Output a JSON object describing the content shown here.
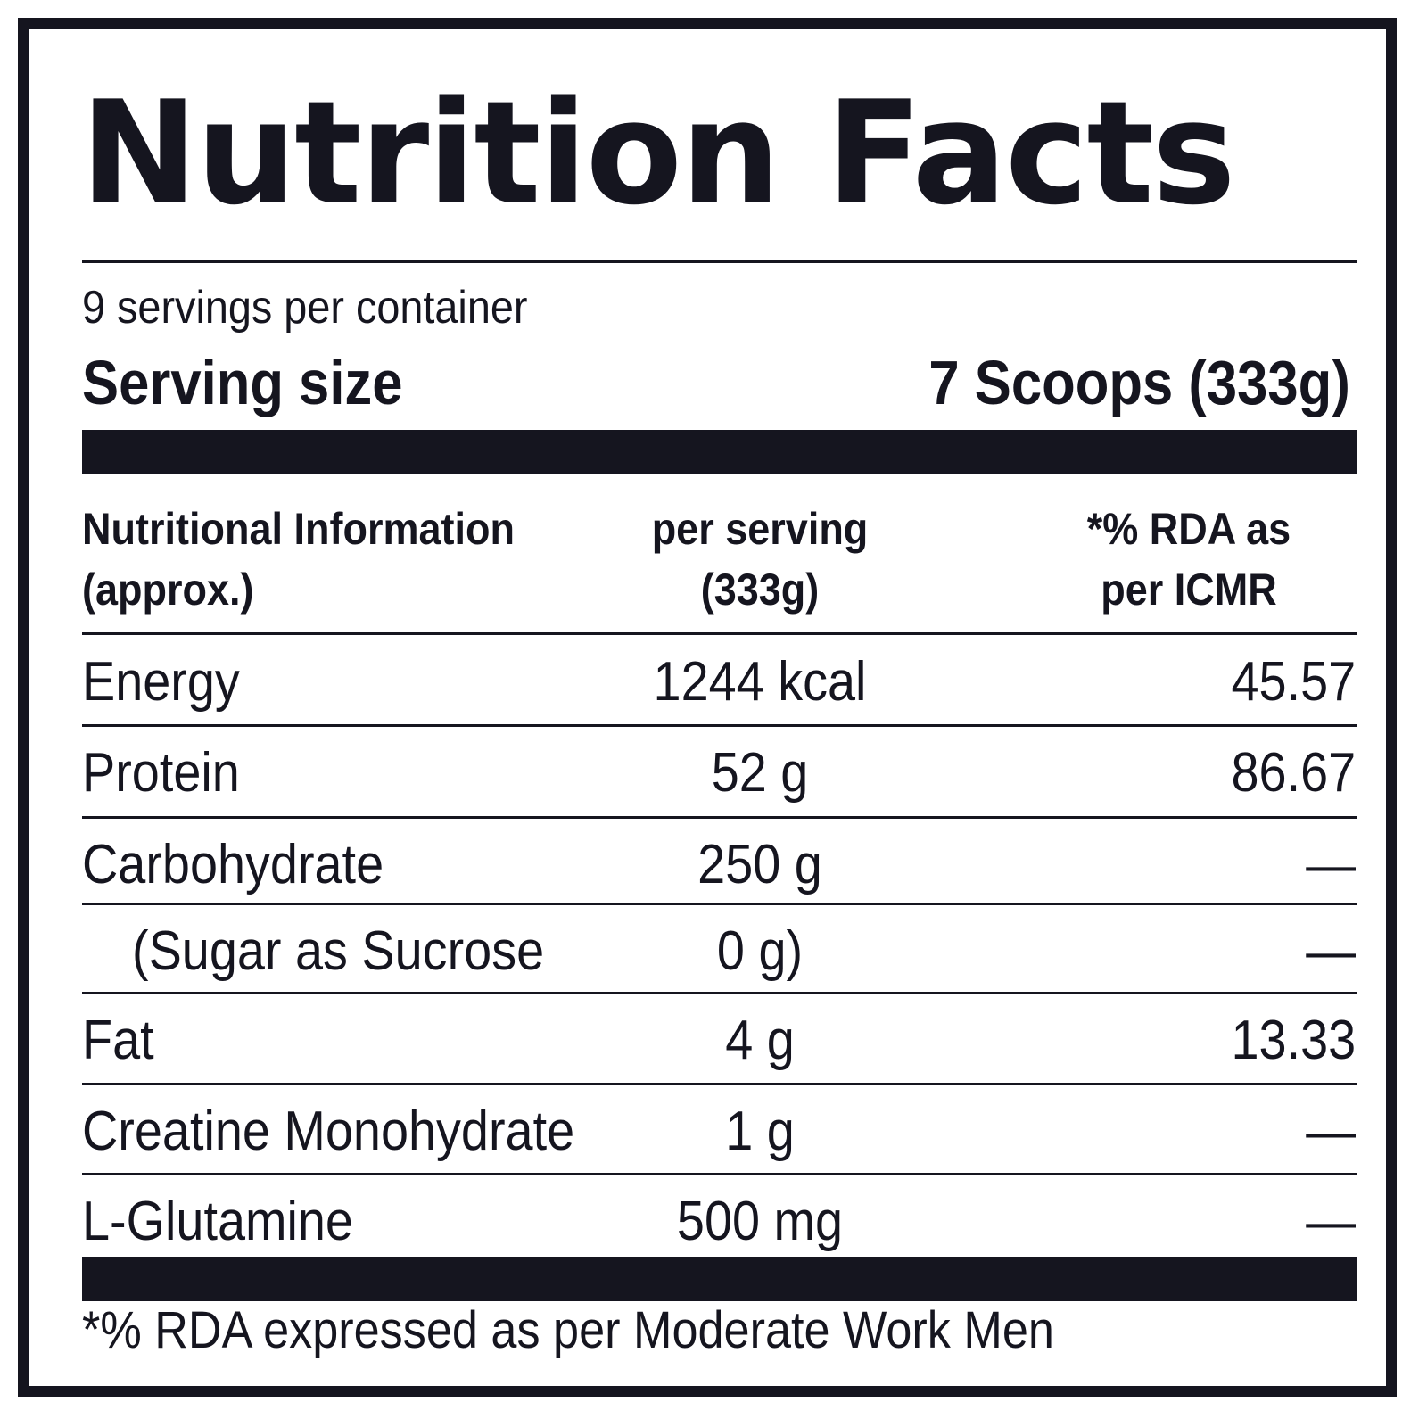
{
  "label": {
    "title": "Nutrition Facts",
    "servings_per_container": "9 servings per container",
    "serving_size_label": "Serving size",
    "serving_size_value": "7 Scoops (333g)",
    "columns": {
      "nutrient": [
        "Nutritional Information",
        "(approx.)"
      ],
      "per_serving": [
        "per serving",
        "(333g)"
      ],
      "rda": [
        "*% RDA as",
        "per ICMR"
      ]
    },
    "rows": [
      {
        "name": "Energy",
        "amount": "1244 kcal",
        "rda": "45.57"
      },
      {
        "name": "Protein",
        "amount": "52 g",
        "rda": "86.67"
      },
      {
        "name": "Carbohydrate",
        "amount": "250 g",
        "rda": "—"
      },
      {
        "name": "(Sugar as Sucrose",
        "amount": "0 g)",
        "rda": "—"
      },
      {
        "name": "Fat",
        "amount": "4 g",
        "rda": "13.33"
      },
      {
        "name": "Creatine Monohydrate",
        "amount": "1 g",
        "rda": "—"
      },
      {
        "name": "L-Glutamine",
        "amount": "500 mg",
        "rda": "—"
      }
    ],
    "footnote": "*% RDA expressed as per Moderate Work Men"
  }
}
